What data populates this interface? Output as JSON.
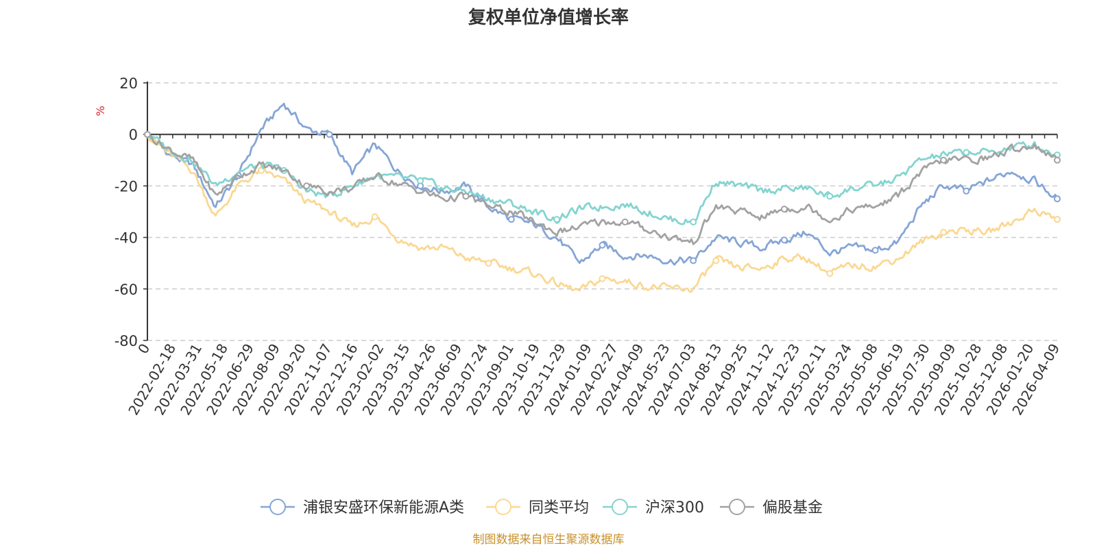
{
  "chart_data": {
    "type": "line",
    "title": "复权单位净值增长率",
    "ylabel": "%",
    "ylim": [
      -80,
      20
    ],
    "yticks": [
      20,
      0,
      -20,
      -40,
      -60,
      -80
    ],
    "grid": true,
    "legend_position": "bottom",
    "x_tick_labels": [
      "0",
      "2022-02-18",
      "2022-03-31",
      "2022-05-18",
      "2022-06-29",
      "2022-08-09",
      "2022-09-20",
      "2022-11-07",
      "2022-12-16",
      "2023-02-02",
      "2023-03-15",
      "2023-04-26",
      "2023-06-09",
      "2023-07-24",
      "2023-09-01",
      "2023-10-19",
      "2023-11-29",
      "2024-01-09",
      "2024-02-27",
      "2024-04-09",
      "2024-05-23",
      "2024-07-03",
      "2024-08-13",
      "2024-09-25",
      "2024-11-12",
      "2024-12-23",
      "2025-02-11",
      "2025-03-24",
      "2025-05-08",
      "2025-06-19",
      "2025-07-30",
      "2025-09-09",
      "2025-10-28",
      "2025-12-08",
      "2026-01-20",
      "2026-04-09"
    ],
    "series": [
      {
        "name": "浦银安盛环保新能源A类",
        "color": "#86a5d6",
        "values": [
          0,
          -8,
          -12,
          -28,
          -16,
          2,
          12,
          2,
          0,
          -15,
          -4,
          -14,
          -20,
          -22,
          -20,
          -28,
          -33,
          -35,
          -40,
          -50,
          -43,
          -47,
          -47,
          -49,
          -49,
          -40,
          -42,
          -44,
          -41,
          -38,
          -46,
          -44,
          -45,
          -42,
          -28,
          -20,
          -22,
          -18,
          -14,
          -18,
          -25
        ]
      },
      {
        "name": "同类平均",
        "color": "#fad892",
        "values": [
          0,
          -8,
          -14,
          -32,
          -20,
          -14,
          -18,
          -26,
          -30,
          -36,
          -32,
          -40,
          -44,
          -44,
          -48,
          -50,
          -52,
          -54,
          -58,
          -61,
          -56,
          -57,
          -59,
          -60,
          -60,
          -49,
          -52,
          -52,
          -48,
          -48,
          -54,
          -51,
          -51,
          -48,
          -42,
          -38,
          -37,
          -38,
          -34,
          -29,
          -33
        ]
      },
      {
        "name": "沪深300",
        "color": "#84d4d0",
        "values": [
          0,
          -6,
          -10,
          -20,
          -14,
          -12,
          -14,
          -22,
          -24,
          -20,
          -16,
          -17,
          -18,
          -21,
          -22,
          -25,
          -27,
          -30,
          -33,
          -29,
          -28,
          -27,
          -30,
          -33,
          -34,
          -18,
          -20,
          -22,
          -21,
          -21,
          -24,
          -21,
          -20,
          -17,
          -10,
          -8,
          -7,
          -7,
          -5,
          -4,
          -8
        ]
      },
      {
        "name": "偏股基金",
        "color": "#a2a2a2",
        "values": [
          0,
          -6,
          -10,
          -24,
          -16,
          -12,
          -14,
          -20,
          -22,
          -21,
          -16,
          -19,
          -22,
          -25,
          -24,
          -28,
          -30,
          -34,
          -38,
          -36,
          -34,
          -34,
          -37,
          -40,
          -42,
          -28,
          -30,
          -32,
          -29,
          -28,
          -33,
          -29,
          -28,
          -24,
          -15,
          -10,
          -10,
          -9,
          -6,
          -4,
          -10
        ]
      }
    ],
    "source_note": "制图数据来自恒生聚源数据库"
  }
}
